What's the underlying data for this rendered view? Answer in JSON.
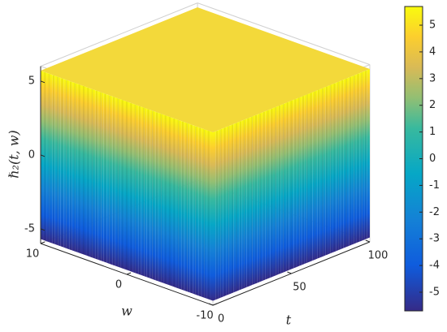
{
  "chart_data": {
    "type": "surface",
    "xlabel": "t",
    "ylabel": "w",
    "zlabel": "ℏ₂(t, w)",
    "xlim": [
      0,
      100
    ],
    "xticks": [
      0,
      50,
      100
    ],
    "ylim": [
      -10,
      10
    ],
    "yticks": [
      -10,
      0,
      10
    ],
    "zlim": [
      -6,
      6
    ],
    "zticks": [
      -5,
      0,
      5
    ],
    "clim": [
      -5.7,
      5.7
    ],
    "cticks": [
      -5,
      -4,
      -3,
      -2,
      -1,
      0,
      1,
      2,
      3,
      4,
      5
    ],
    "colormap": "parula"
  }
}
